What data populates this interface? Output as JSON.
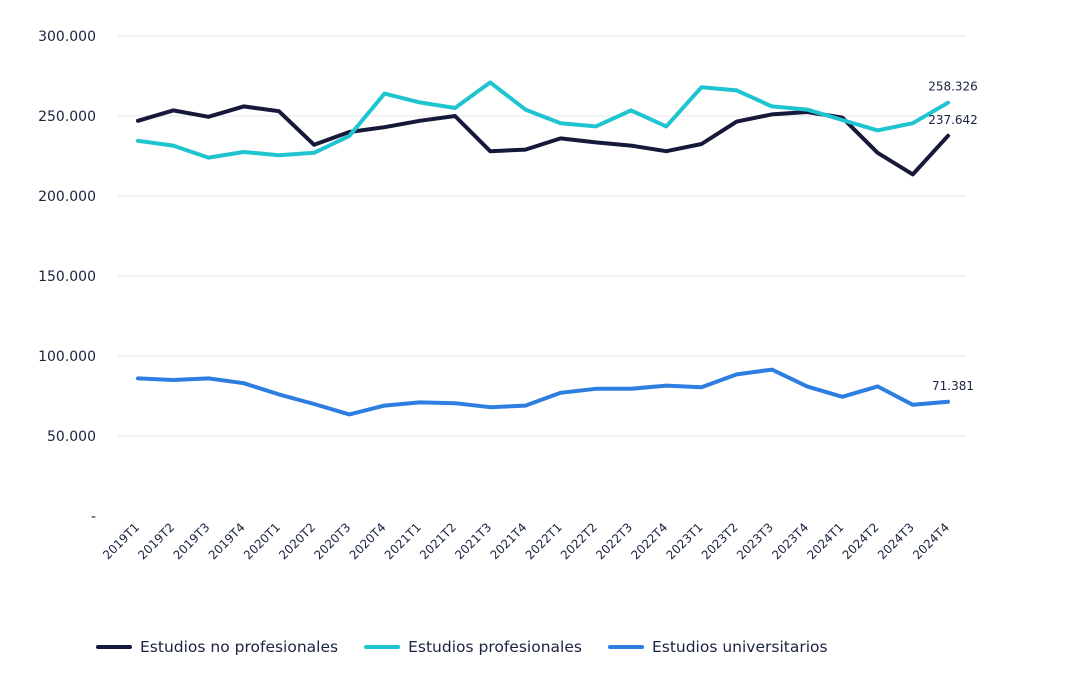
{
  "chart_data": {
    "type": "line",
    "title": "",
    "xlabel": "",
    "ylabel": "",
    "ylim": [
      0,
      300000
    ],
    "y_ticks": [
      {
        "value": 0,
        "label": "-"
      },
      {
        "value": 50000,
        "label": "50.000"
      },
      {
        "value": 100000,
        "label": "100.000"
      },
      {
        "value": 150000,
        "label": "150.000"
      },
      {
        "value": 200000,
        "label": "200.000"
      },
      {
        "value": 250000,
        "label": "250.000"
      },
      {
        "value": 300000,
        "label": "300.000"
      }
    ],
    "grid": true,
    "legend_position": "bottom-left",
    "categories": [
      "2019T1",
      "2019T2",
      "2019T3",
      "2019T4",
      "2020T1",
      "2020T2",
      "2020T3",
      "2020T4",
      "2021T1",
      "2021T2",
      "2021T3",
      "2021T4",
      "2022T1",
      "2022T2",
      "2022T3",
      "2022T4",
      "2023T1",
      "2023T2",
      "2023T3",
      "2023T4",
      "2024T1",
      "2024T2",
      "2024T3",
      "2024T4"
    ],
    "series": [
      {
        "name": "Estudios no profesionales",
        "color": "#16193a",
        "values": [
          247000,
          253500,
          249500,
          256000,
          253000,
          232000,
          240000,
          243000,
          247000,
          250000,
          228000,
          229000,
          236000,
          233500,
          231500,
          228000,
          232500,
          246500,
          251000,
          252500,
          249000,
          227000,
          213500,
          237642
        ],
        "end_label": "237.642"
      },
      {
        "name": "Estudios profesionales",
        "color": "#1ec4cf",
        "values": [
          234500,
          231500,
          224000,
          227500,
          225500,
          227000,
          237500,
          264000,
          258500,
          255000,
          271000,
          254000,
          245500,
          243500,
          253500,
          243500,
          268000,
          266000,
          256000,
          254000,
          247500,
          241000,
          245500,
          258326
        ],
        "end_label": "258.326"
      },
      {
        "name": "Estudios universitarios",
        "color": "#2e7de0",
        "values": [
          86000,
          85000,
          86000,
          83000,
          76000,
          70000,
          63500,
          69000,
          71000,
          70500,
          68000,
          69000,
          77000,
          79500,
          79500,
          81500,
          80500,
          88500,
          91500,
          81000,
          74500,
          81000,
          69500,
          71381
        ],
        "end_label": "71.381"
      }
    ]
  }
}
